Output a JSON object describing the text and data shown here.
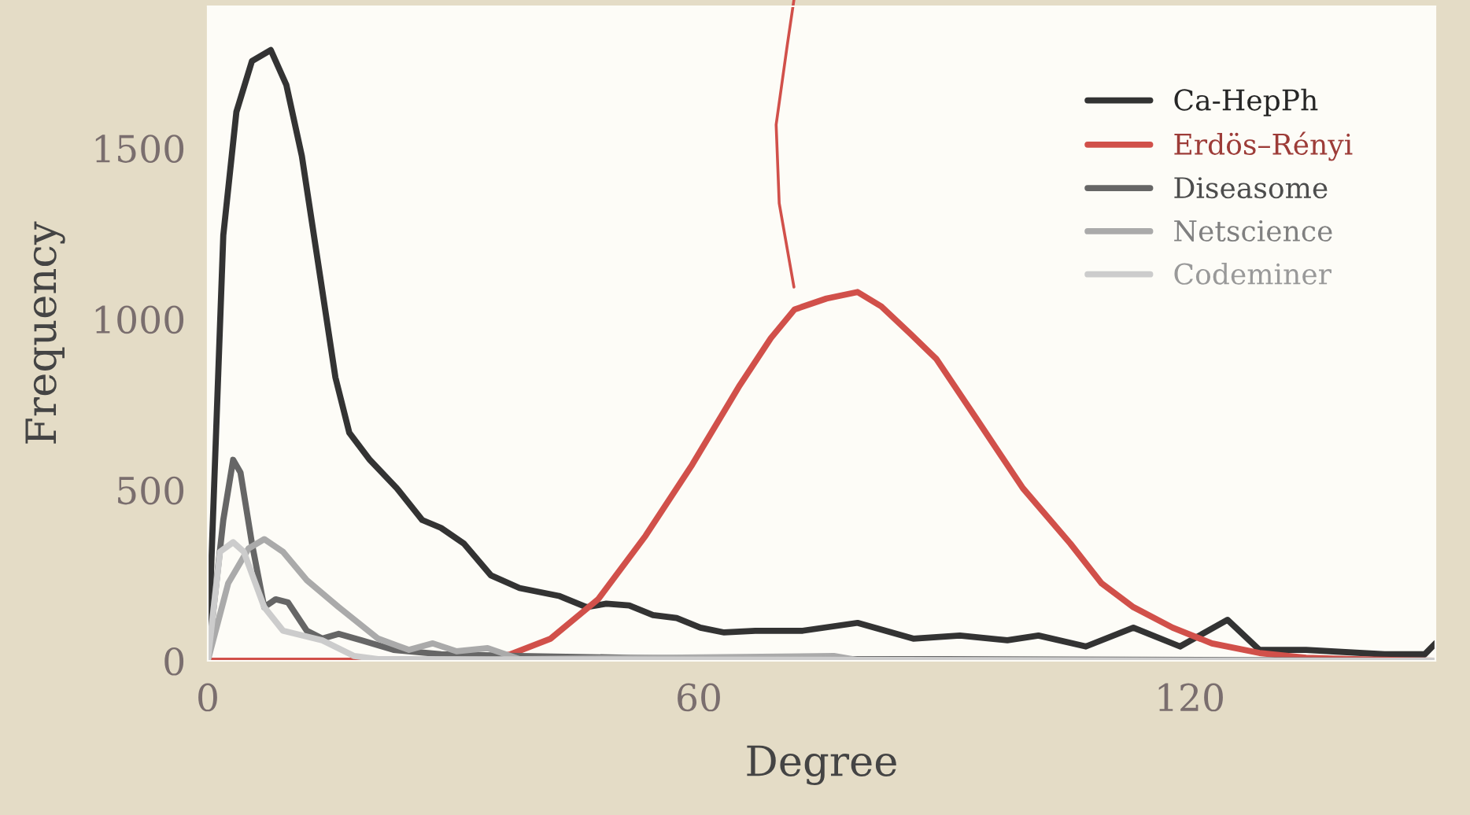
{
  "chart_data": {
    "type": "line",
    "xlabel": "Degree",
    "ylabel": "Frequency",
    "xlim": [
      0,
      150
    ],
    "ylim": [
      0,
      1915
    ],
    "xticks": [
      0,
      60,
      120
    ],
    "yticks": [
      0,
      500,
      1000,
      1500
    ],
    "grid": false,
    "legend": "top right",
    "marker": "none",
    "line_style": "solid",
    "series": [
      {
        "name": "Ca-HepPh",
        "color": "#333333",
        "x": [
          0,
          1.9,
          3.5,
          5.4,
          7.7,
          9.6,
          11.5,
          13.7,
          15.6,
          17.3,
          19.8,
          23.1,
          26.2,
          28.5,
          31.3,
          34.6,
          38.1,
          42.9,
          46.3,
          48.7,
          51.5,
          54.4,
          57.3,
          60.2,
          63.1,
          66.9,
          72.7,
          79.4,
          86.2,
          91.9,
          97.7,
          101.5,
          107.3,
          113.1,
          118.8,
          124.6,
          128.5,
          134.2,
          143.8,
          148.7,
          150
        ],
        "values": [
          0,
          1245,
          1606,
          1755,
          1787,
          1685,
          1477,
          1130,
          829,
          667,
          588,
          505,
          412,
          389,
          343,
          250,
          213,
          190,
          157,
          167,
          162,
          134,
          125,
          97,
          83,
          88,
          88,
          111,
          65,
          74,
          60,
          74,
          42,
          97,
          42,
          120,
          32,
          32,
          19,
          19,
          51
        ]
      },
      {
        "name": "Erdös–Rényi",
        "color": "#d1504a",
        "x": [
          0,
          32.3,
          37,
          41.9,
          47.7,
          53.5,
          59.2,
          65,
          68.8,
          71.7,
          75.6,
          79.4,
          82.3,
          85.8,
          89,
          93.8,
          99.6,
          105.4,
          109.2,
          113.1,
          117.9,
          122.7,
          128.5,
          134.2,
          140,
          150
        ],
        "values": [
          0,
          0,
          19,
          65,
          180,
          366,
          574,
          806,
          944,
          1028,
          1060,
          1079,
          1037,
          958,
          884,
          713,
          505,
          343,
          227,
          157,
          97,
          51,
          23,
          9,
          5,
          0
        ]
      },
      {
        "name": "Diseasome",
        "color": "#666666",
        "x": [
          0,
          1.9,
          3.1,
          4,
          5.4,
          6.9,
          8.3,
          9.8,
          12.1,
          14,
          16,
          18.8,
          22.7,
          28.5,
          38.1,
          51.5,
          70.8,
          90,
          150
        ],
        "values": [
          0,
          412,
          588,
          551,
          343,
          157,
          180,
          171,
          88,
          65,
          79,
          60,
          32,
          19,
          14,
          9,
          5,
          5,
          0
        ]
      },
      {
        "name": "Netscience",
        "color": "#aaaaaa",
        "x": [
          0,
          2.5,
          5,
          6.9,
          9.2,
          12.1,
          16,
          20.8,
          24.6,
          27.5,
          30.4,
          34.2,
          38.1,
          76.5,
          80,
          150
        ],
        "values": [
          0,
          227,
          329,
          356,
          319,
          236,
          157,
          65,
          32,
          51,
          28,
          37,
          5,
          14,
          0,
          0
        ]
      },
      {
        "name": "Codeminer",
        "color": "#cccccc",
        "x": [
          0,
          1.5,
          3.1,
          4.4,
          6.9,
          9.2,
          14,
          17.9,
          20.8,
          150
        ],
        "values": [
          0,
          319,
          347,
          319,
          157,
          88,
          60,
          14,
          5,
          0
        ]
      }
    ]
  }
}
